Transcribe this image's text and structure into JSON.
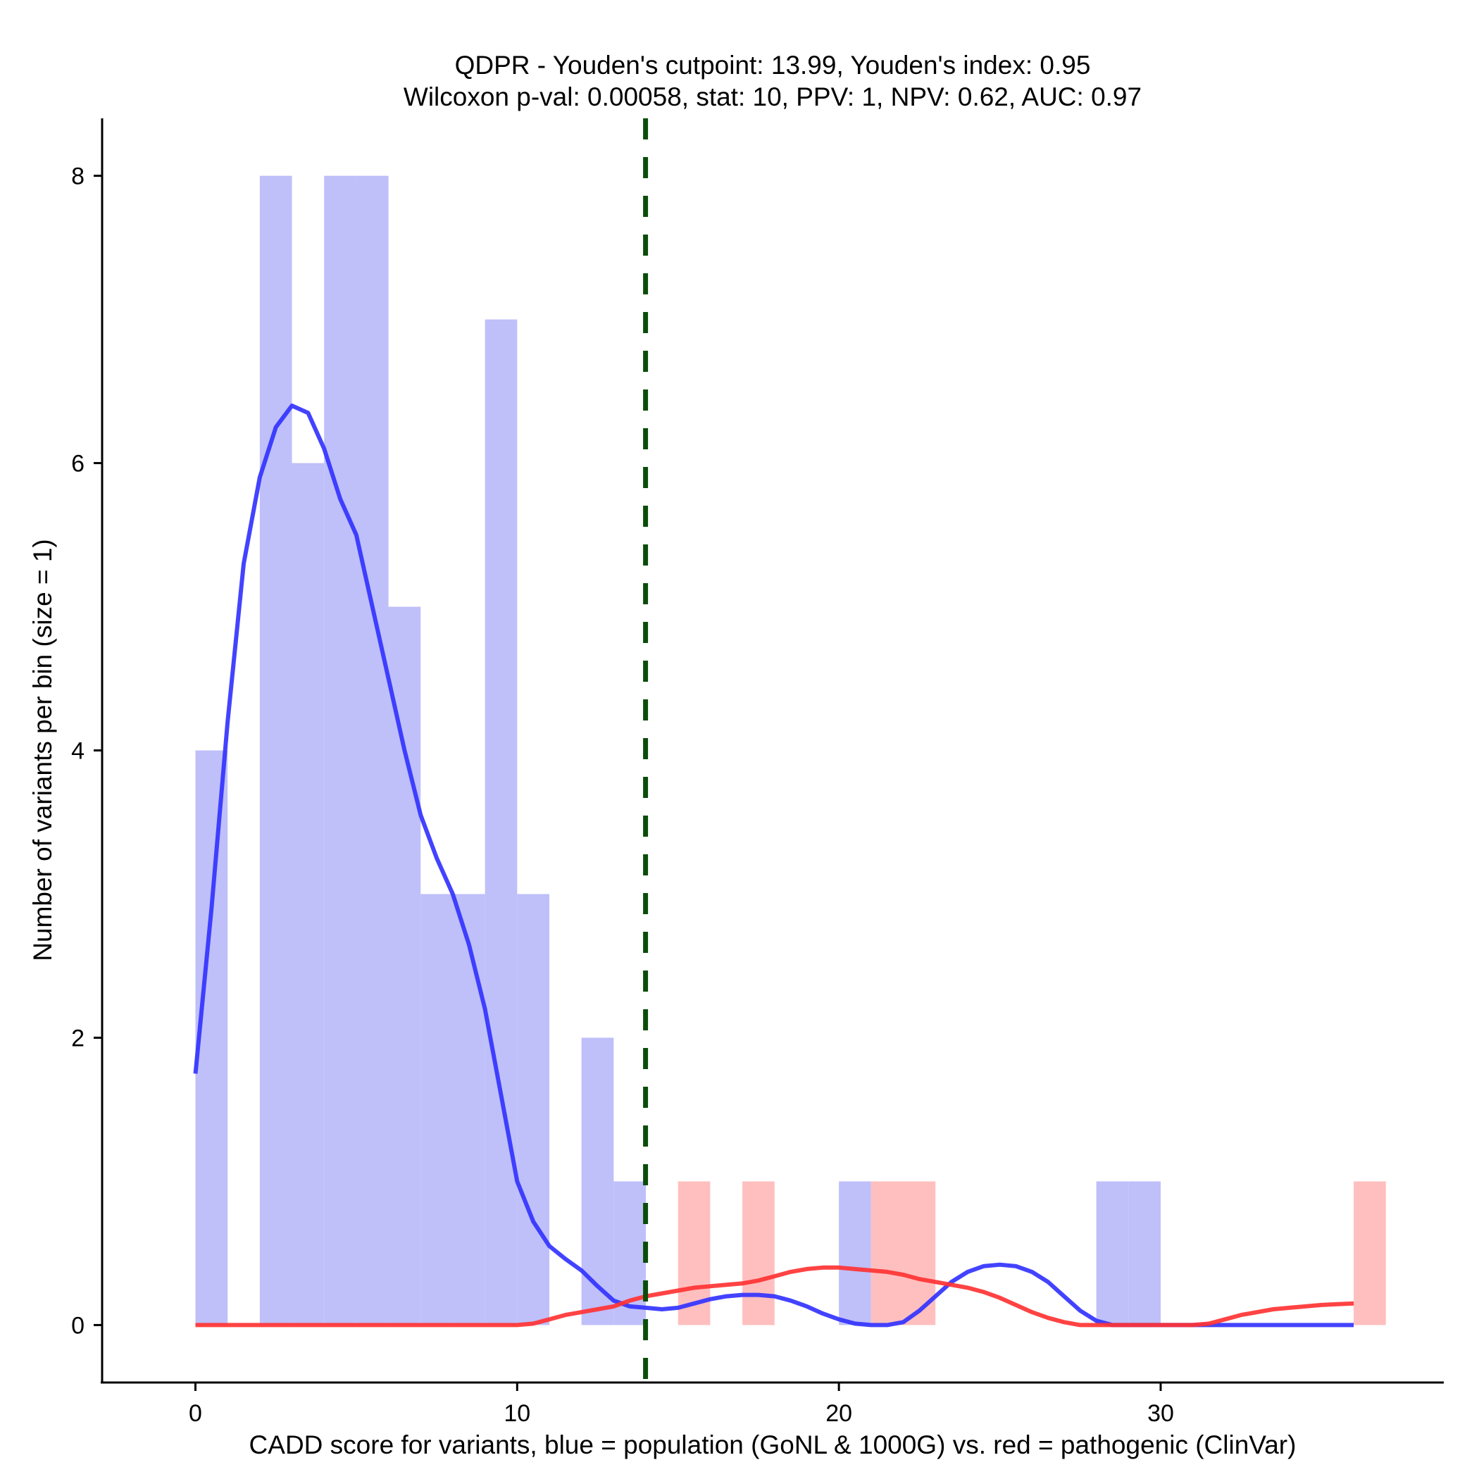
{
  "chart_data": {
    "type": "bar",
    "title_lines": [
      "QDPR - Youden's cutpoint: 13.99, Youden's index: 0.95",
      "Wilcoxon p-val: 0.00058, stat: 10, PPV: 1, NPV: 0.62, AUC: 0.97"
    ],
    "xlabel": "CADD score for variants, blue = population (GoNL & 1000G) vs. red = pathogenic (ClinVar)",
    "ylabel": "Number of variants per bin (size = 1)",
    "xlim": [
      -2.9,
      38.8
    ],
    "ylim": [
      -0.4,
      8.4
    ],
    "x_ticks": [
      0,
      10,
      20,
      30
    ],
    "y_ticks": [
      0,
      2,
      4,
      6,
      8
    ],
    "bin_width": 1,
    "cutpoint": 13.99,
    "colors": {
      "population": "#3333ff",
      "pathogenic": "#ff3333",
      "population_fill": "#bfbffa",
      "pathogenic_fill": "#ffbfbf",
      "cutpoint": "#0a4d0a"
    },
    "series": [
      {
        "name": "population (GoNL & 1000G)",
        "bins": [
          {
            "x0": 0,
            "count": 4
          },
          {
            "x0": 2,
            "count": 8
          },
          {
            "x0": 3,
            "count": 6
          },
          {
            "x0": 4,
            "count": 8
          },
          {
            "x0": 5,
            "count": 8
          },
          {
            "x0": 6,
            "count": 5
          },
          {
            "x0": 7,
            "count": 3
          },
          {
            "x0": 8,
            "count": 3
          },
          {
            "x0": 9,
            "count": 7
          },
          {
            "x0": 10,
            "count": 3
          },
          {
            "x0": 12,
            "count": 2
          },
          {
            "x0": 13,
            "count": 1
          },
          {
            "x0": 20,
            "count": 1
          },
          {
            "x0": 28,
            "count": 1
          },
          {
            "x0": 29,
            "count": 1
          }
        ],
        "density_curve": [
          [
            0,
            1.75
          ],
          [
            0.5,
            2.9
          ],
          [
            1,
            4.2
          ],
          [
            1.5,
            5.3
          ],
          [
            2,
            5.9
          ],
          [
            2.5,
            6.25
          ],
          [
            3,
            6.4
          ],
          [
            3.5,
            6.35
          ],
          [
            4,
            6.1
          ],
          [
            4.5,
            5.75
          ],
          [
            5,
            5.5
          ],
          [
            5.5,
            5.0
          ],
          [
            6,
            4.5
          ],
          [
            6.5,
            4.0
          ],
          [
            7,
            3.55
          ],
          [
            7.5,
            3.25
          ],
          [
            8,
            3.0
          ],
          [
            8.5,
            2.65
          ],
          [
            9,
            2.2
          ],
          [
            9.5,
            1.6
          ],
          [
            10,
            1.0
          ],
          [
            10.5,
            0.72
          ],
          [
            11,
            0.55
          ],
          [
            11.5,
            0.46
          ],
          [
            12,
            0.38
          ],
          [
            12.5,
            0.27
          ],
          [
            13,
            0.17
          ],
          [
            13.5,
            0.13
          ],
          [
            14,
            0.12
          ],
          [
            14.5,
            0.11
          ],
          [
            15,
            0.12
          ],
          [
            15.5,
            0.15
          ],
          [
            16,
            0.18
          ],
          [
            16.5,
            0.2
          ],
          [
            17,
            0.21
          ],
          [
            17.5,
            0.21
          ],
          [
            18,
            0.2
          ],
          [
            18.5,
            0.17
          ],
          [
            19,
            0.13
          ],
          [
            19.5,
            0.08
          ],
          [
            20,
            0.04
          ],
          [
            20.5,
            0.01
          ],
          [
            21,
            0.0
          ],
          [
            21.5,
            0.0
          ],
          [
            22,
            0.02
          ],
          [
            22.5,
            0.1
          ],
          [
            23,
            0.2
          ],
          [
            23.5,
            0.3
          ],
          [
            24,
            0.37
          ],
          [
            24.5,
            0.41
          ],
          [
            25,
            0.42
          ],
          [
            25.5,
            0.41
          ],
          [
            26,
            0.37
          ],
          [
            26.5,
            0.3
          ],
          [
            27,
            0.2
          ],
          [
            27.5,
            0.1
          ],
          [
            28,
            0.03
          ],
          [
            28.5,
            0.0
          ],
          [
            30,
            0.0
          ],
          [
            32,
            0.0
          ],
          [
            34,
            0.0
          ],
          [
            36,
            0.0
          ]
        ]
      },
      {
        "name": "pathogenic (ClinVar)",
        "bins": [
          {
            "x0": 15,
            "count": 1
          },
          {
            "x0": 17,
            "count": 1
          },
          {
            "x0": 21,
            "count": 1
          },
          {
            "x0": 22,
            "count": 1
          },
          {
            "x0": 36,
            "count": 1
          }
        ],
        "density_curve": [
          [
            0,
            0.0
          ],
          [
            4,
            0.0
          ],
          [
            8,
            0.0
          ],
          [
            10,
            0.0
          ],
          [
            10.5,
            0.01
          ],
          [
            11,
            0.04
          ],
          [
            11.5,
            0.07
          ],
          [
            12,
            0.09
          ],
          [
            12.5,
            0.11
          ],
          [
            13,
            0.13
          ],
          [
            13.5,
            0.17
          ],
          [
            14,
            0.2
          ],
          [
            14.5,
            0.22
          ],
          [
            15,
            0.24
          ],
          [
            15.5,
            0.26
          ],
          [
            16,
            0.27
          ],
          [
            16.5,
            0.28
          ],
          [
            17,
            0.29
          ],
          [
            17.5,
            0.31
          ],
          [
            18,
            0.34
          ],
          [
            18.5,
            0.37
          ],
          [
            19,
            0.39
          ],
          [
            19.5,
            0.4
          ],
          [
            20,
            0.4
          ],
          [
            20.5,
            0.39
          ],
          [
            21,
            0.38
          ],
          [
            21.5,
            0.37
          ],
          [
            22,
            0.35
          ],
          [
            22.5,
            0.32
          ],
          [
            23,
            0.3
          ],
          [
            23.5,
            0.28
          ],
          [
            24,
            0.26
          ],
          [
            24.5,
            0.23
          ],
          [
            25,
            0.19
          ],
          [
            25.5,
            0.14
          ],
          [
            26,
            0.09
          ],
          [
            26.5,
            0.05
          ],
          [
            27,
            0.02
          ],
          [
            27.5,
            0.0
          ],
          [
            28,
            0.0
          ],
          [
            30,
            0.0
          ],
          [
            31,
            0.0
          ],
          [
            31.5,
            0.01
          ],
          [
            32,
            0.04
          ],
          [
            32.5,
            0.07
          ],
          [
            33,
            0.09
          ],
          [
            33.5,
            0.11
          ],
          [
            34,
            0.12
          ],
          [
            34.5,
            0.13
          ],
          [
            35,
            0.14
          ],
          [
            35.5,
            0.145
          ],
          [
            36,
            0.15
          ]
        ]
      }
    ]
  }
}
